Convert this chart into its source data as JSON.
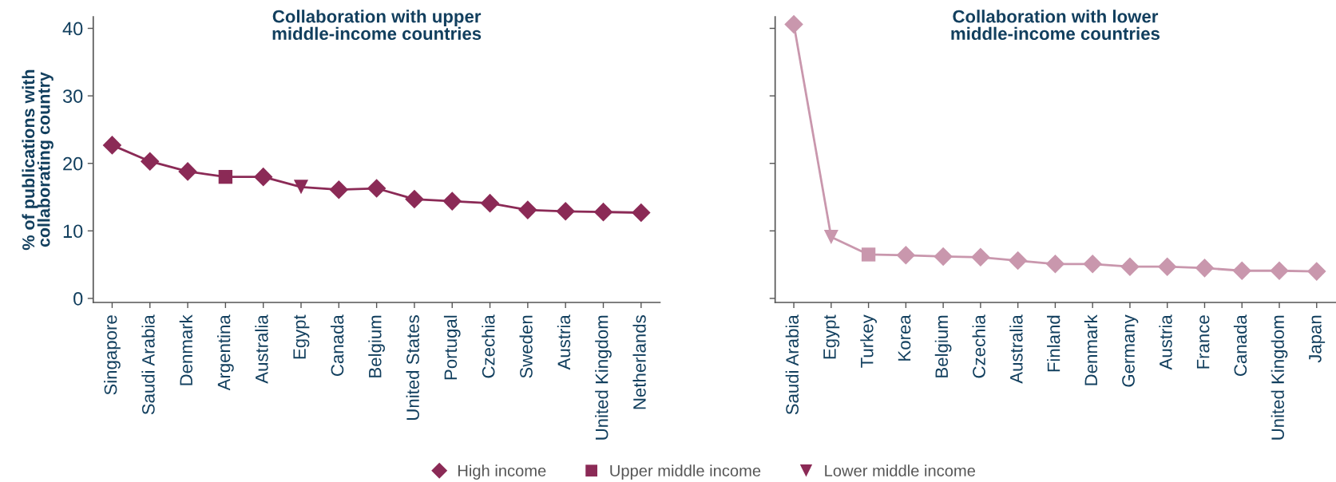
{
  "chart_data": [
    {
      "type": "line",
      "title": "Collaboration with upper\nmiddle-income countries",
      "ylabel": "% of publications with\ncollaborating country",
      "categories": [
        "Singapore",
        "Saudi Arabia",
        "Denmark",
        "Argentina",
        "Australia",
        "Egypt",
        "Canada",
        "Belgium",
        "United States",
        "Portugal",
        "Czechia",
        "Sweden",
        "Austria",
        "United Kingdom",
        "Netherlands"
      ],
      "ylim": [
        -0.6,
        41.7
      ],
      "yticks": [
        0,
        10,
        20,
        30,
        40
      ],
      "legend": "bottom",
      "series": [
        {
          "marker": "none",
          "line_style": "solid",
          "color": "#8b2a56",
          "values": [
            22.7,
            20.3,
            18.8,
            18.0,
            18.0,
            16.5,
            16.1,
            16.3,
            14.7,
            14.4,
            14.1,
            13.1,
            12.9,
            12.8,
            12.7
          ]
        },
        {
          "type": "scatter",
          "name": "High income",
          "marker": "diamond",
          "color": "#8b2a56",
          "values": [
            22.7,
            20.3,
            18.8,
            null,
            18.0,
            null,
            16.1,
            16.3,
            14.7,
            14.4,
            14.1,
            13.1,
            12.9,
            12.8,
            12.7
          ]
        },
        {
          "type": "scatter",
          "name": "Upper middle income",
          "marker": "square",
          "color": "#8b2a56",
          "values": [
            null,
            null,
            null,
            18.0,
            null,
            null,
            null,
            null,
            null,
            null,
            null,
            null,
            null,
            null,
            null
          ]
        },
        {
          "type": "scatter",
          "name": "Lower middle income",
          "marker": "triangle",
          "color": "#8b2a56",
          "values": [
            null,
            null,
            null,
            null,
            null,
            16.5,
            null,
            null,
            null,
            null,
            null,
            null,
            null,
            null,
            null
          ]
        }
      ]
    },
    {
      "type": "line",
      "title": "Collaboration with lower\nmiddle-income countries",
      "categories": [
        "Saudi Arabia",
        "Egypt",
        "Turkey",
        "Korea",
        "Belgium",
        "Czechia",
        "Australia",
        "Finland",
        "Denmark",
        "Germany",
        "Austria",
        "France",
        "Canada",
        "United Kingdom",
        "Japan"
      ],
      "ylim": [
        -0.6,
        41.7
      ],
      "yticks": [
        0,
        10,
        20,
        30,
        40
      ],
      "tick_labels": "x",
      "series": [
        {
          "marker": "none",
          "line_style": "solid",
          "color": "#c997ad",
          "values": [
            40.6,
            9.1,
            6.5,
            6.4,
            6.2,
            6.1,
            5.6,
            5.1,
            5.1,
            4.7,
            4.7,
            4.5,
            4.1,
            4.1,
            4.0
          ]
        },
        {
          "type": "scatter",
          "marker": "diamond",
          "color": "#c997ad",
          "values": [
            40.6,
            null,
            null,
            6.4,
            6.2,
            6.1,
            5.6,
            5.1,
            5.1,
            4.7,
            4.7,
            4.5,
            4.1,
            4.1,
            4.0
          ]
        },
        {
          "type": "scatter",
          "marker": "square",
          "color": "#c997ad",
          "values": [
            null,
            null,
            6.5,
            null,
            null,
            null,
            null,
            null,
            null,
            null,
            null,
            null,
            null,
            null,
            null
          ]
        },
        {
          "type": "scatter",
          "marker": "triangle",
          "color": "#c997ad",
          "values": [
            null,
            9.1,
            null,
            null,
            null,
            null,
            null,
            null,
            null,
            null,
            null,
            null,
            null,
            null,
            null
          ]
        }
      ]
    }
  ]
}
